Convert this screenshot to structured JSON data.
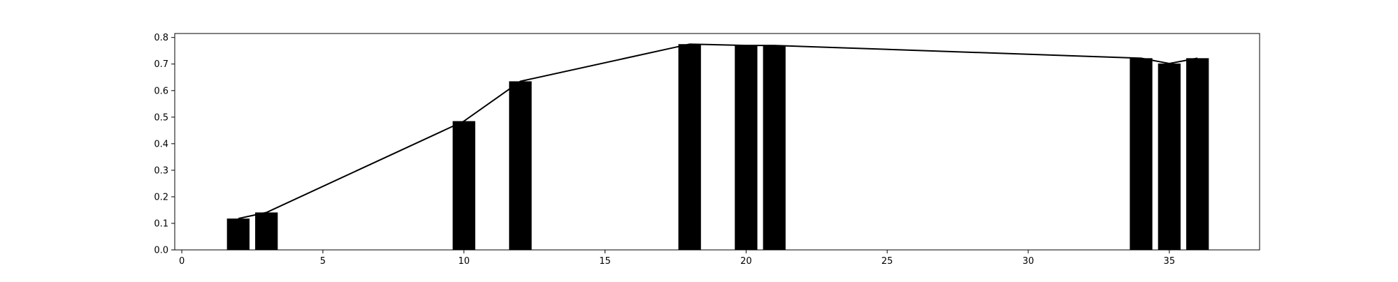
{
  "chart_data": {
    "type": "bar",
    "title": "",
    "xlabel": "",
    "ylabel": "",
    "xlim": [
      -0.25,
      38.2
    ],
    "ylim": [
      0.0,
      0.815
    ],
    "bar_width": 0.8,
    "x": [
      2,
      3,
      10,
      12,
      18,
      20,
      21,
      34,
      35,
      36
    ],
    "values": [
      0.118,
      0.141,
      0.485,
      0.635,
      0.775,
      0.77,
      0.77,
      0.722,
      0.702,
      0.722
    ],
    "line_overlay": true,
    "grid": false,
    "legend": "none",
    "x_ticks": [
      0,
      5,
      10,
      15,
      20,
      25,
      30,
      35
    ],
    "x_tick_labels": [
      "0",
      "5",
      "10",
      "15",
      "20",
      "25",
      "30",
      "35"
    ],
    "y_ticks": [
      0.0,
      0.1,
      0.2,
      0.3,
      0.4,
      0.5,
      0.6,
      0.7,
      0.8
    ],
    "y_tick_labels": [
      "0.0",
      "0.1",
      "0.2",
      "0.3",
      "0.4",
      "0.5",
      "0.6",
      "0.7",
      "0.8"
    ],
    "colors": {
      "bar": "#000000",
      "line": "#000000",
      "axes": "#000000",
      "background": "#ffffff"
    }
  }
}
